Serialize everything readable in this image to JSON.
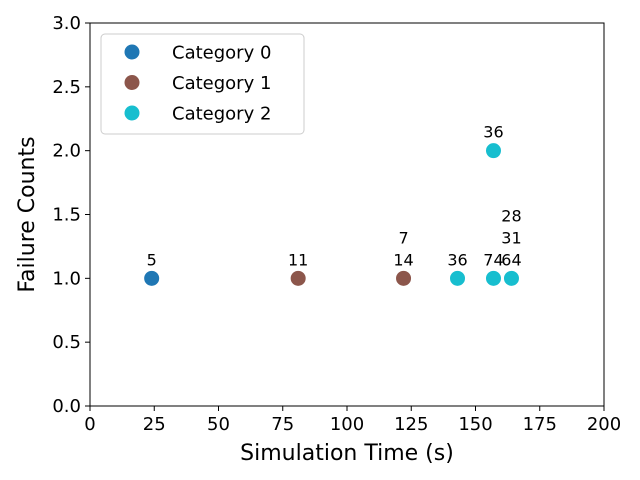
{
  "chart_data": {
    "type": "scatter",
    "title": "",
    "xlabel": "Simulation Time (s)",
    "ylabel": "Failure Counts",
    "xlim": [
      0,
      200
    ],
    "ylim": [
      0,
      3.0
    ],
    "xticks": [
      "0",
      "25",
      "50",
      "75",
      "100",
      "125",
      "150",
      "175",
      "200"
    ],
    "yticks": [
      "0.0",
      "0.5",
      "1.0",
      "1.5",
      "2.0",
      "2.5",
      "3.0"
    ],
    "grid": false,
    "legend_position": "top-left",
    "series": [
      {
        "name": "Category 0",
        "color": "#1f77b4",
        "points": [
          {
            "x": 24,
            "y": 1.0,
            "labels": [
              "5"
            ]
          }
        ]
      },
      {
        "name": "Category 1",
        "color": "#8c564b",
        "points": [
          {
            "x": 81,
            "y": 1.0,
            "labels": [
              "11"
            ]
          },
          {
            "x": 122,
            "y": 1.0,
            "labels": [
              "14",
              "7"
            ]
          }
        ]
      },
      {
        "name": "Category 2",
        "color": "#17becf",
        "points": [
          {
            "x": 143,
            "y": 1.0,
            "labels": [
              "36"
            ]
          },
          {
            "x": 157,
            "y": 1.0,
            "labels": [
              "74"
            ]
          },
          {
            "x": 157,
            "y": 2.0,
            "labels": [
              "36"
            ]
          },
          {
            "x": 164,
            "y": 1.0,
            "labels": [
              "64",
              "31",
              "28"
            ]
          }
        ]
      }
    ]
  }
}
